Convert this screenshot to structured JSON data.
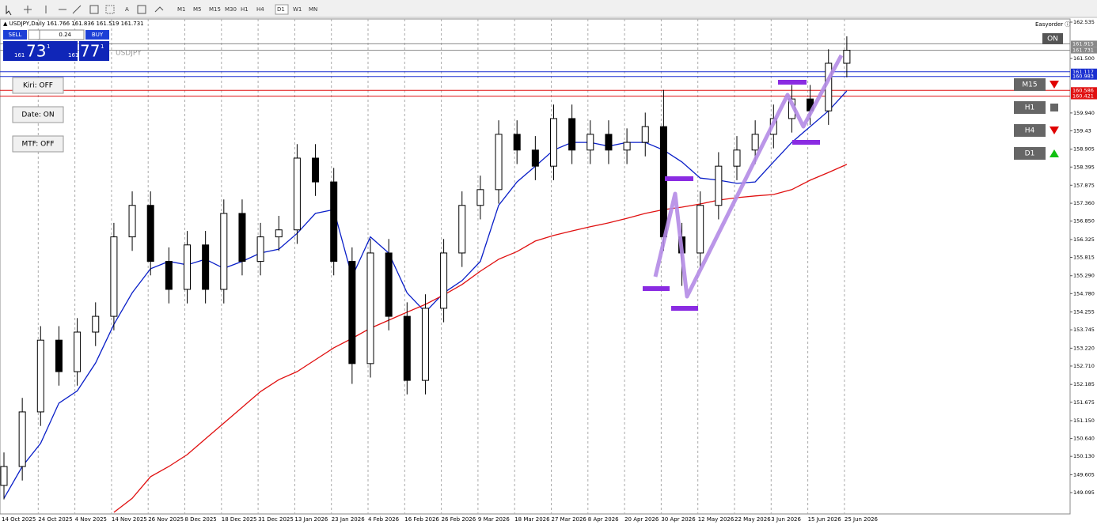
{
  "toolbar": {
    "text_tool": "A",
    "timeframes": [
      "M1",
      "M5",
      "M15",
      "M30",
      "H1",
      "H4",
      "D1",
      "W1",
      "MN"
    ],
    "active": "D1"
  },
  "header": {
    "symbol_line": "▲ USDJPY,Daily  161.766 161.836 161.519 161.731",
    "easyorder": "Easyorder ⓘ"
  },
  "trade_panel": {
    "sell": "SELL",
    "lot": "0.24",
    "buy": "BUY",
    "sell_price": {
      "big_figure": "161",
      "pips": "73",
      "fraction": "1"
    },
    "buy_price": {
      "big_figure": "161",
      "pips": "77",
      "fraction": "1"
    },
    "symbol": "USDJPY"
  },
  "left_buttons": [
    "Kiri: OFF",
    "Date: ON",
    "MTF: OFF"
  ],
  "right_panel": {
    "toggle": "ON",
    "signals": [
      {
        "label": "M15",
        "signal": "down"
      },
      {
        "label": "H1",
        "signal": "flat"
      },
      {
        "label": "H4",
        "signal": "down"
      },
      {
        "label": "D1",
        "signal": "up"
      }
    ]
  },
  "chart_data": {
    "type": "candlestick",
    "categories": [
      "14 Oct 2025",
      null,
      "24 Oct 2025",
      null,
      "4 Nov 2025",
      null,
      "14 Nov 2025",
      null,
      "26 Nov 2025",
      null,
      "8 Dec 2025",
      null,
      "18 Dec 2025",
      null,
      "31 Dec 2025",
      null,
      "13 Jan 2026",
      null,
      "23 Jan 2026",
      null,
      "4 Feb 2026",
      null,
      "16 Feb 2026",
      null,
      "26 Feb 2026",
      null,
      "9 Mar 2026",
      null,
      "18 Mar 2026",
      null,
      "27 Mar 2026",
      null,
      "8 Apr 2026",
      null,
      "20 Apr 2026",
      null,
      "30 Apr 2026",
      null,
      "12 May 2026",
      null,
      "22 May 2026",
      null,
      "3 Jun 2026",
      null,
      "15 Jun 2026",
      null,
      "25 Jun 2026"
    ],
    "open": [
      149.3,
      149.84,
      151.4,
      153.45,
      152.55,
      153.68,
      154.13,
      156.4,
      157.3,
      155.7,
      154.9,
      156.17,
      154.9,
      157.07,
      155.7,
      156.4,
      156.6,
      158.65,
      157.97,
      155.7,
      152.78,
      155.94,
      154.13,
      152.3,
      154.36,
      155.94,
      157.3,
      157.75,
      159.33,
      158.88,
      158.42,
      159.78,
      158.88,
      159.33,
      158.88,
      159.1,
      159.55,
      156.4,
      155.94,
      157.3,
      158.42,
      158.88,
      159.33,
      159.78,
      160.34,
      160.0,
      161.36
    ],
    "high": [
      150.24,
      151.8,
      153.85,
      153.85,
      154.08,
      154.53,
      156.8,
      157.7,
      157.7,
      156.1,
      156.57,
      156.57,
      157.47,
      157.47,
      156.8,
      157.0,
      159.05,
      159.05,
      158.37,
      156.1,
      156.34,
      156.34,
      154.53,
      154.76,
      156.34,
      157.7,
      158.15,
      159.73,
      159.73,
      159.28,
      160.18,
      160.18,
      159.73,
      159.73,
      159.5,
      159.95,
      160.6,
      156.8,
      157.7,
      158.82,
      159.28,
      159.73,
      160.18,
      160.74,
      160.74,
      161.76,
      162.13
    ],
    "low": [
      148.9,
      149.44,
      151.0,
      152.15,
      152.15,
      153.28,
      153.73,
      156.0,
      155.3,
      154.5,
      154.5,
      154.5,
      154.5,
      155.3,
      155.3,
      156.0,
      156.2,
      157.57,
      155.3,
      152.2,
      152.38,
      153.73,
      151.9,
      151.9,
      153.96,
      155.54,
      156.9,
      157.35,
      158.48,
      158.02,
      158.02,
      158.48,
      158.48,
      158.48,
      158.48,
      158.7,
      156.0,
      155.0,
      155.54,
      156.9,
      158.02,
      158.48,
      158.93,
      159.38,
      159.6,
      159.6,
      160.96
    ],
    "close": [
      149.84,
      151.4,
      153.45,
      152.55,
      153.68,
      154.13,
      156.4,
      157.3,
      155.7,
      154.9,
      156.17,
      154.9,
      157.07,
      155.7,
      156.4,
      156.6,
      158.65,
      157.97,
      155.7,
      152.78,
      155.94,
      154.13,
      152.3,
      154.36,
      155.94,
      157.3,
      157.75,
      159.33,
      158.88,
      158.42,
      159.78,
      158.88,
      159.33,
      158.88,
      159.1,
      159.55,
      156.4,
      155.94,
      157.3,
      158.42,
      158.88,
      159.33,
      159.78,
      160.34,
      160.0,
      161.36,
      161.73
    ],
    "series": [
      {
        "color": "#0a1fc8",
        "values": [
          148.93,
          149.84,
          150.5,
          151.65,
          152.0,
          152.8,
          153.9,
          154.8,
          155.49,
          155.7,
          155.6,
          155.76,
          155.5,
          155.7,
          155.94,
          156.05,
          156.5,
          157.07,
          157.18,
          155.26,
          156.4,
          155.94,
          154.8,
          154.25,
          154.8,
          155.15,
          155.7,
          157.3,
          157.97,
          158.42,
          158.88,
          159.1,
          159.1,
          158.99,
          159.1,
          159.1,
          158.88,
          158.54,
          158.08,
          158.02,
          157.93,
          157.97,
          158.54,
          159.1,
          159.55,
          160.0,
          160.57
        ]
      },
      {
        "color": "#e01010",
        "values": [
          null,
          null,
          null,
          null,
          null,
          null,
          148.53,
          148.93,
          149.55,
          149.84,
          150.18,
          150.63,
          151.08,
          151.53,
          151.98,
          152.32,
          152.55,
          152.89,
          153.23,
          153.5,
          153.79,
          154.02,
          154.25,
          154.47,
          154.74,
          155.04,
          155.42,
          155.76,
          155.98,
          156.28,
          156.44,
          156.57,
          156.69,
          156.8,
          156.93,
          157.07,
          157.18,
          157.25,
          157.34,
          157.45,
          157.52,
          157.57,
          157.61,
          157.75,
          158.02,
          158.24,
          158.47
        ]
      }
    ],
    "levels": [
      {
        "value": 161.915,
        "color": "#888888"
      },
      {
        "value": 161.731,
        "color": "#888888"
      },
      {
        "value": 161.117,
        "color": "#1a2fd0"
      },
      {
        "value": 160.983,
        "color": "#1a2fd0"
      },
      {
        "value": 160.586,
        "color": "#e01010"
      },
      {
        "value": 160.421,
        "color": "#e01010"
      }
    ],
    "ylim": [
      148.485,
      162.625
    ],
    "yticks": [
      162.535,
      {
        "value": 161.5,
        "label": "161.500"
      },
      {
        "value": 159.94,
        "label": "159.940"
      },
      159.43,
      158.905,
      158.395,
      157.875,
      {
        "value": 157.36,
        "label": "157.360"
      },
      {
        "value": 156.85,
        "label": "156.850"
      },
      156.325,
      155.815,
      {
        "value": 155.29,
        "label": "155.290"
      },
      {
        "value": 154.78,
        "label": "154.780"
      },
      154.255,
      153.745,
      {
        "value": 153.22,
        "label": "153.220"
      },
      {
        "value": 152.71,
        "label": "152.710"
      },
      152.185,
      151.675,
      {
        "value": 151.15,
        "label": "151.150"
      },
      {
        "value": 150.64,
        "label": "150.640"
      },
      {
        "value": 150.13,
        "label": "150.130"
      },
      149.605,
      149.095
    ],
    "grid": true
  }
}
